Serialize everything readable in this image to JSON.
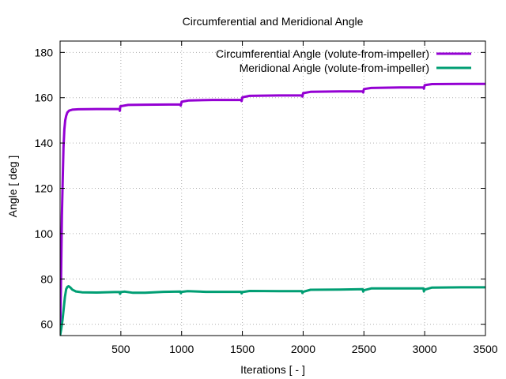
{
  "chart_data": {
    "type": "line",
    "title": "Circumferential and Meridional Angle",
    "xlabel": "Iterations [ - ]",
    "ylabel": "Angle [ deg ]",
    "xlim": [
      0,
      3500
    ],
    "ylim": [
      55,
      185
    ],
    "xticks": [
      500,
      1000,
      1500,
      2000,
      2500,
      3000,
      3500
    ],
    "yticks": [
      60,
      80,
      100,
      120,
      140,
      160,
      180
    ],
    "grid": true,
    "legend_position": "top-right",
    "series": [
      {
        "name": "Circumferential Angle (volute-from-impeller)",
        "color": "#9400d3",
        "points": [
          [
            0,
            55
          ],
          [
            8,
            80
          ],
          [
            15,
            108
          ],
          [
            22,
            125
          ],
          [
            28,
            138
          ],
          [
            35,
            146
          ],
          [
            42,
            150
          ],
          [
            50,
            152
          ],
          [
            60,
            153.5
          ],
          [
            75,
            154.3
          ],
          [
            100,
            154.7
          ],
          [
            150,
            154.9
          ],
          [
            300,
            155
          ],
          [
            490,
            155
          ],
          [
            492,
            154.2
          ],
          [
            496,
            156.2
          ],
          [
            560,
            156.8
          ],
          [
            700,
            156.9
          ],
          [
            990,
            157
          ],
          [
            993,
            156.5
          ],
          [
            1000,
            158.2
          ],
          [
            1060,
            158.8
          ],
          [
            1250,
            159
          ],
          [
            1490,
            159
          ],
          [
            1494,
            158.5
          ],
          [
            1500,
            160.2
          ],
          [
            1560,
            160.8
          ],
          [
            1800,
            161
          ],
          [
            1990,
            161
          ],
          [
            1994,
            160.5
          ],
          [
            2000,
            162
          ],
          [
            2060,
            162.6
          ],
          [
            2300,
            162.8
          ],
          [
            2490,
            162.8
          ],
          [
            2494,
            162.3
          ],
          [
            2500,
            163.8
          ],
          [
            2560,
            164.3
          ],
          [
            2800,
            164.5
          ],
          [
            2990,
            164.5
          ],
          [
            2994,
            164
          ],
          [
            3000,
            165.5
          ],
          [
            3060,
            166
          ],
          [
            3300,
            166.1
          ],
          [
            3500,
            166.1
          ]
        ]
      },
      {
        "name": "Meridional Angle (volute-from-impeller)",
        "color": "#009e73",
        "points": [
          [
            0,
            55
          ],
          [
            10,
            58
          ],
          [
            20,
            62
          ],
          [
            30,
            67
          ],
          [
            40,
            72
          ],
          [
            50,
            75.5
          ],
          [
            60,
            76.5
          ],
          [
            70,
            76.8
          ],
          [
            85,
            76.2
          ],
          [
            100,
            75.3
          ],
          [
            130,
            74.5
          ],
          [
            180,
            74.1
          ],
          [
            300,
            74
          ],
          [
            450,
            74.2
          ],
          [
            490,
            74.2
          ],
          [
            494,
            73.4
          ],
          [
            500,
            74.2
          ],
          [
            530,
            74.4
          ],
          [
            600,
            73.9
          ],
          [
            700,
            73.9
          ],
          [
            850,
            74.3
          ],
          [
            990,
            74.4
          ],
          [
            994,
            73.7
          ],
          [
            1000,
            74.3
          ],
          [
            1050,
            74.6
          ],
          [
            1200,
            74.3
          ],
          [
            1490,
            74.3
          ],
          [
            1494,
            73.6
          ],
          [
            1500,
            74.2
          ],
          [
            1560,
            74.7
          ],
          [
            1800,
            74.6
          ],
          [
            1990,
            74.6
          ],
          [
            1994,
            73.8
          ],
          [
            2000,
            74.3
          ],
          [
            2060,
            75.2
          ],
          [
            2300,
            75.3
          ],
          [
            2490,
            75.5
          ],
          [
            2494,
            74.4
          ],
          [
            2500,
            75
          ],
          [
            2560,
            75.8
          ],
          [
            2800,
            75.8
          ],
          [
            2990,
            75.8
          ],
          [
            2994,
            74.5
          ],
          [
            3000,
            75.3
          ],
          [
            3060,
            76.2
          ],
          [
            3300,
            76.3
          ],
          [
            3500,
            76.3
          ]
        ]
      }
    ]
  }
}
